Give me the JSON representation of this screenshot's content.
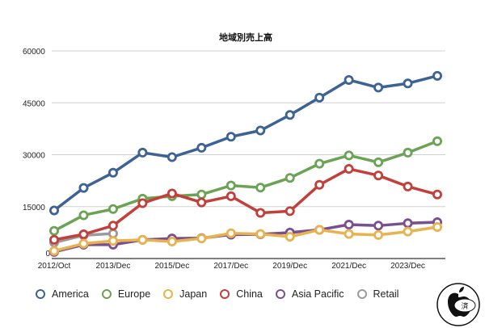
{
  "chart_data": {
    "type": "line",
    "title": "地域別売上高",
    "xlabel": "",
    "ylabel": "",
    "ylim": [
      0,
      60000
    ],
    "yticks": [
      0,
      15000,
      30000,
      45000,
      60000
    ],
    "grid": true,
    "legend_position": "bottom",
    "categories": [
      "2012/Oct",
      "",
      "2013/Dec",
      "",
      "2015/Dec",
      "",
      "2017/Dec",
      "",
      "2019/Dec",
      "",
      "2021/Dec",
      "",
      "2023/Dec",
      ""
    ],
    "series": [
      {
        "name": "America",
        "color": "#3d6294",
        "values": [
          13900,
          20400,
          24800,
          30600,
          29300,
          32000,
          35200,
          37000,
          41500,
          46500,
          51600,
          49400,
          50600,
          52800
        ]
      },
      {
        "name": "Europe",
        "color": "#6aa353",
        "values": [
          8000,
          12500,
          14300,
          17300,
          18000,
          18500,
          21100,
          20500,
          23300,
          27400,
          29800,
          27800,
          30600,
          33900
        ]
      },
      {
        "name": "Japan",
        "color": "#e8b24e",
        "values": [
          2200,
          4300,
          5100,
          5400,
          4900,
          5800,
          7300,
          7100,
          6300,
          8300,
          7100,
          6800,
          7800,
          9100
        ]
      },
      {
        "name": "China",
        "color": "#c33f3b",
        "values": [
          5400,
          7000,
          9500,
          16000,
          18800,
          16200,
          18000,
          13200,
          13700,
          21300,
          25900,
          24000,
          20800,
          18500
        ]
      },
      {
        "name": "Asia Pacific",
        "color": "#7a4f91",
        "values": [
          1900,
          4000,
          4000,
          5400,
          5800,
          5900,
          6900,
          7000,
          7500,
          8300,
          9800,
          9500,
          10200,
          10500
        ]
      },
      {
        "name": "Retail",
        "color": "#9a9a9a",
        "values": [
          4600,
          6700,
          7200,
          null,
          null,
          null,
          null,
          null,
          null,
          null,
          null,
          null,
          null,
          null
        ]
      }
    ]
  },
  "watermark": {
    "logo_text": "済"
  }
}
